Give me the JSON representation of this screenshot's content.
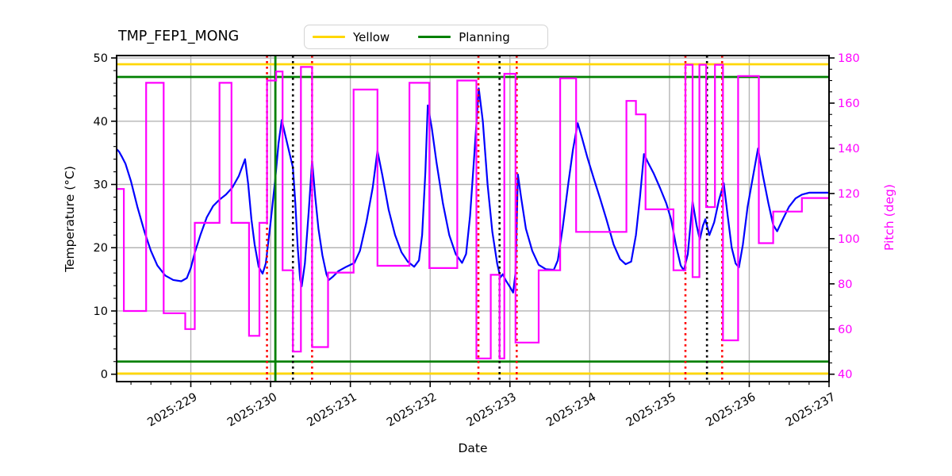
{
  "chart_data": {
    "type": "line",
    "title": "TMP_FEP1_MONG",
    "xlabel": "Date",
    "ylabel_left": "Temperature (°C)",
    "ylabel_right": "Pitch (deg)",
    "x_range_days": [
      228.07,
      237.0
    ],
    "y_left_axis": {
      "ticks": [
        0,
        10,
        20,
        30,
        40,
        50
      ],
      "minor_step": 2,
      "lim": [
        -2.1,
        50.4
      ]
    },
    "y_right_axis": {
      "ticks": [
        40,
        60,
        80,
        100,
        120,
        140,
        160,
        180
      ],
      "minor_step": 5,
      "lim": [
        36.7,
        181.1
      ]
    },
    "x_ticks": {
      "major": [
        {
          "day": 229,
          "label": "2025:229"
        },
        {
          "day": 230,
          "label": "2025:230"
        },
        {
          "day": 231,
          "label": "2025:231"
        },
        {
          "day": 232,
          "label": "2025:232"
        },
        {
          "day": 233,
          "label": "2025:233"
        },
        {
          "day": 234,
          "label": "2025:234"
        },
        {
          "day": 235,
          "label": "2025:235"
        },
        {
          "day": 236,
          "label": "2025:236"
        },
        {
          "day": 237,
          "label": "2025:237"
        }
      ],
      "minor_step": 0.25
    },
    "grid": {
      "on": true,
      "color": "#b4b4b4"
    },
    "legend": {
      "position": "upper-center-outside",
      "entries": [
        {
          "label": "Yellow",
          "color": "#ffd700"
        },
        {
          "label": "Planning",
          "color": "#008000"
        }
      ]
    },
    "limit_lines": {
      "yellow": {
        "label": "Yellow",
        "color": "#ffd700",
        "values_degC": [
          49.0,
          0.1
        ]
      },
      "planning": {
        "label": "Planning",
        "color": "#008000",
        "values_degC": [
          47.0,
          2.0
        ]
      }
    },
    "vlines": {
      "red_dotted": {
        "color": "#ff0000",
        "style": "dotted",
        "days": [
          229.955,
          230.52,
          232.605,
          233.085,
          235.2,
          235.66
        ]
      },
      "black_dotted": {
        "color": "#000000",
        "style": "dotted",
        "days": [
          230.28,
          232.87,
          235.47
        ]
      },
      "green_solid": {
        "color": "#008000",
        "style": "solid",
        "days": [
          230.06
        ]
      }
    },
    "series": [
      {
        "name": "temperature_degC",
        "axis": "left",
        "color": "#0000ff",
        "style": "line",
        "points": [
          [
            228.07,
            35.6
          ],
          [
            228.1,
            35.2
          ],
          [
            228.14,
            34.3
          ],
          [
            228.18,
            33.3
          ],
          [
            228.25,
            30.5
          ],
          [
            228.33,
            26.5
          ],
          [
            228.42,
            22.5
          ],
          [
            228.5,
            19.5
          ],
          [
            228.58,
            17.2
          ],
          [
            228.68,
            15.6
          ],
          [
            228.78,
            14.9
          ],
          [
            228.88,
            14.7
          ],
          [
            228.95,
            15.2
          ],
          [
            229.0,
            16.8
          ],
          [
            229.05,
            19.2
          ],
          [
            229.12,
            22.0
          ],
          [
            229.2,
            24.8
          ],
          [
            229.28,
            26.6
          ],
          [
            229.36,
            27.6
          ],
          [
            229.44,
            28.4
          ],
          [
            229.52,
            29.5
          ],
          [
            229.6,
            31.3
          ],
          [
            229.68,
            34.0
          ],
          [
            229.72,
            30.0
          ],
          [
            229.76,
            24.5
          ],
          [
            229.8,
            20.5
          ],
          [
            229.85,
            17.0
          ],
          [
            229.9,
            15.9
          ],
          [
            229.94,
            17.5
          ],
          [
            230.0,
            24.0
          ],
          [
            230.06,
            31.0
          ],
          [
            230.1,
            36.5
          ],
          [
            230.14,
            40.2
          ],
          [
            230.18,
            38.0
          ],
          [
            230.24,
            34.8
          ],
          [
            230.28,
            32.7
          ],
          [
            230.31,
            27.0
          ],
          [
            230.34,
            20.0
          ],
          [
            230.37,
            15.0
          ],
          [
            230.39,
            13.9
          ],
          [
            230.43,
            17.5
          ],
          [
            230.48,
            26.0
          ],
          [
            230.52,
            33.8
          ],
          [
            230.56,
            28.0
          ],
          [
            230.6,
            23.0
          ],
          [
            230.65,
            18.8
          ],
          [
            230.7,
            15.8
          ],
          [
            230.73,
            14.9
          ],
          [
            230.78,
            15.4
          ],
          [
            230.85,
            16.3
          ],
          [
            230.95,
            17.0
          ],
          [
            231.05,
            17.6
          ],
          [
            231.12,
            19.5
          ],
          [
            231.2,
            24.0
          ],
          [
            231.28,
            29.5
          ],
          [
            231.34,
            35.3
          ],
          [
            231.4,
            31.5
          ],
          [
            231.48,
            26.0
          ],
          [
            231.56,
            22.0
          ],
          [
            231.64,
            19.3
          ],
          [
            231.72,
            17.8
          ],
          [
            231.8,
            17.0
          ],
          [
            231.86,
            18.0
          ],
          [
            231.9,
            22.0
          ],
          [
            231.94,
            32.0
          ],
          [
            231.97,
            42.5
          ],
          [
            232.02,
            39.0
          ],
          [
            232.08,
            33.5
          ],
          [
            232.16,
            27.0
          ],
          [
            232.24,
            22.0
          ],
          [
            232.32,
            19.0
          ],
          [
            232.4,
            17.6
          ],
          [
            232.45,
            19.0
          ],
          [
            232.5,
            25.0
          ],
          [
            232.55,
            34.0
          ],
          [
            232.61,
            45.2
          ],
          [
            232.66,
            40.0
          ],
          [
            232.72,
            30.0
          ],
          [
            232.78,
            22.5
          ],
          [
            232.84,
            17.5
          ],
          [
            232.88,
            15.3
          ],
          [
            232.91,
            15.8
          ],
          [
            232.95,
            14.8
          ],
          [
            233.0,
            13.8
          ],
          [
            233.04,
            12.9
          ],
          [
            233.07,
            16.0
          ],
          [
            233.1,
            31.6
          ],
          [
            233.14,
            28.0
          ],
          [
            233.2,
            23.0
          ],
          [
            233.28,
            19.5
          ],
          [
            233.36,
            17.3
          ],
          [
            233.45,
            16.6
          ],
          [
            233.55,
            16.5
          ],
          [
            233.6,
            18.0
          ],
          [
            233.66,
            23.0
          ],
          [
            233.73,
            30.0
          ],
          [
            233.79,
            35.5
          ],
          [
            233.85,
            39.7
          ],
          [
            233.9,
            37.5
          ],
          [
            233.97,
            34.3
          ],
          [
            234.05,
            31.0
          ],
          [
            234.13,
            27.8
          ],
          [
            234.21,
            24.5
          ],
          [
            234.3,
            20.5
          ],
          [
            234.38,
            18.2
          ],
          [
            234.45,
            17.4
          ],
          [
            234.52,
            17.8
          ],
          [
            234.58,
            22.0
          ],
          [
            234.63,
            28.0
          ],
          [
            234.68,
            34.8
          ],
          [
            234.73,
            33.5
          ],
          [
            234.8,
            31.8
          ],
          [
            234.88,
            29.5
          ],
          [
            234.96,
            27.0
          ],
          [
            235.02,
            24.5
          ],
          [
            235.08,
            20.5
          ],
          [
            235.14,
            17.2
          ],
          [
            235.18,
            16.4
          ],
          [
            235.23,
            19.0
          ],
          [
            235.29,
            27.3
          ],
          [
            235.34,
            23.5
          ],
          [
            235.38,
            21.3
          ],
          [
            235.42,
            23.5
          ],
          [
            235.45,
            24.5
          ],
          [
            235.5,
            22.0
          ],
          [
            235.56,
            24.0
          ],
          [
            235.62,
            27.5
          ],
          [
            235.68,
            30.2
          ],
          [
            235.73,
            25.0
          ],
          [
            235.78,
            20.0
          ],
          [
            235.83,
            17.5
          ],
          [
            235.87,
            16.9
          ],
          [
            235.92,
            20.5
          ],
          [
            235.98,
            26.5
          ],
          [
            236.05,
            31.5
          ],
          [
            236.11,
            35.7
          ],
          [
            236.17,
            31.5
          ],
          [
            236.24,
            27.0
          ],
          [
            236.3,
            23.6
          ],
          [
            236.35,
            22.6
          ],
          [
            236.42,
            24.5
          ],
          [
            236.5,
            26.5
          ],
          [
            236.58,
            27.8
          ],
          [
            236.66,
            28.4
          ],
          [
            236.75,
            28.7
          ],
          [
            236.88,
            28.7
          ],
          [
            237.0,
            28.7
          ]
        ]
      },
      {
        "name": "pitch_deg",
        "axis": "right",
        "color": "#ff00ff",
        "style": "step",
        "end_day": 237.0,
        "steps": [
          [
            228.07,
            122
          ],
          [
            228.16,
            68
          ],
          [
            228.44,
            169
          ],
          [
            228.66,
            67
          ],
          [
            228.93,
            60
          ],
          [
            229.05,
            107
          ],
          [
            229.36,
            169
          ],
          [
            229.51,
            107
          ],
          [
            229.73,
            57
          ],
          [
            229.86,
            107
          ],
          [
            229.955,
            170
          ],
          [
            230.07,
            174
          ],
          [
            230.15,
            86
          ],
          [
            230.28,
            50
          ],
          [
            230.38,
            176
          ],
          [
            230.52,
            52
          ],
          [
            230.72,
            85
          ],
          [
            231.04,
            166
          ],
          [
            231.34,
            88
          ],
          [
            231.74,
            169
          ],
          [
            231.99,
            87
          ],
          [
            232.34,
            170
          ],
          [
            232.58,
            47
          ],
          [
            232.76,
            84
          ],
          [
            232.87,
            47
          ],
          [
            232.93,
            173
          ],
          [
            233.07,
            54
          ],
          [
            233.36,
            86
          ],
          [
            233.63,
            171
          ],
          [
            233.83,
            103
          ],
          [
            234.46,
            161
          ],
          [
            234.58,
            155
          ],
          [
            234.7,
            113
          ],
          [
            235.05,
            86
          ],
          [
            235.2,
            177
          ],
          [
            235.29,
            83
          ],
          [
            235.375,
            177
          ],
          [
            235.46,
            114
          ],
          [
            235.57,
            177
          ],
          [
            235.67,
            55
          ],
          [
            235.86,
            172
          ],
          [
            236.12,
            98
          ],
          [
            236.3,
            112
          ],
          [
            236.66,
            118
          ]
        ]
      }
    ],
    "colors": {
      "temperature": "#0000ff",
      "pitch": "#ff00ff",
      "yellow_limit": "#ffd700",
      "planning_limit": "#008000",
      "red_marker": "#ff0000",
      "black_marker": "#000000",
      "grid": "#b4b4b4",
      "spine": "#000000",
      "right_axis_text": "#ff00ff"
    }
  }
}
